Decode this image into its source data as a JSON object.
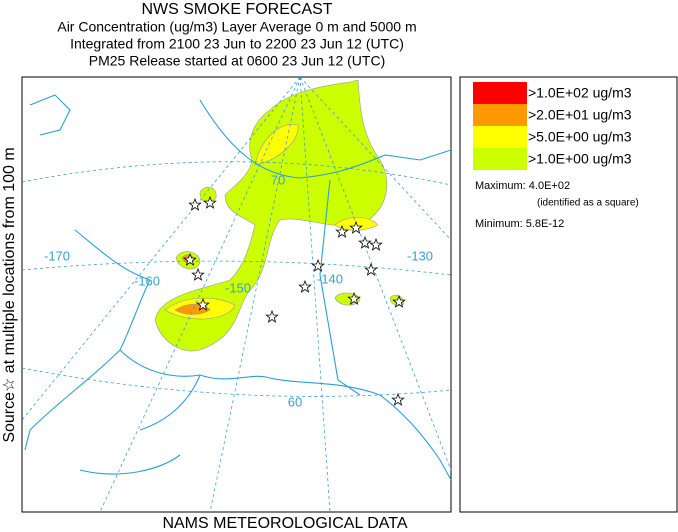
{
  "header": {
    "lines": [
      "NWS SMOKE FORECAST",
      "Air Concentration (ug/m3) Layer Average    0 m and  5000 m",
      "Integrated from 2100 23 Jun to 2200 23 Jun 12 (UTC)",
      "PM25 Release started at 0600 23 Jun 12 (UTC)"
    ]
  },
  "side_label": "Source☆ at multiple locations  from  100 m",
  "footer": "NAMS METEOROLOGICAL DATA",
  "legend": {
    "items": [
      {
        "label": ">1.0E+02 ug/m3",
        "color": "#ff0000"
      },
      {
        "label": ">2.0E+01 ug/m3",
        "color": "#ff9900"
      },
      {
        "label": ">5.0E+00 ug/m3",
        "color": "#ffff00"
      },
      {
        "label": ">1.0E+00 ug/m3",
        "color": "#ccff00"
      }
    ],
    "maximum": "Maximum: 4.0E+02",
    "maximum_note": "(identified as a square)",
    "minimum": "Minimum: 5.8E-12"
  },
  "map": {
    "labels": [
      "-170",
      "-160",
      "-150",
      "-140",
      "-130",
      "70",
      "60"
    ]
  }
}
